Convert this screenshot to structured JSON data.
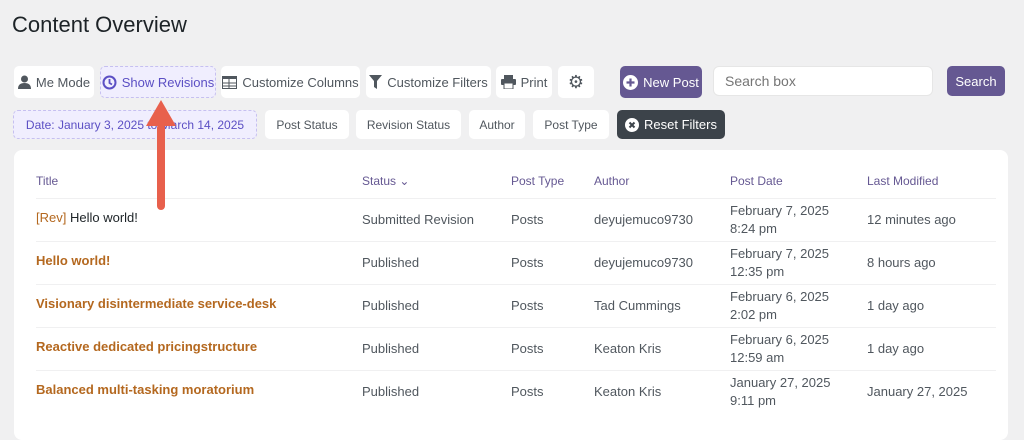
{
  "page_title": "Content Overview",
  "toolbar": {
    "me_mode": "Me Mode",
    "show_revisions": "Show Revisions",
    "customize_columns": "Customize Columns",
    "customize_filters": "Customize Filters",
    "print": "Print",
    "new_post": "New Post",
    "search_placeholder": "Search box",
    "search": "Search"
  },
  "filters": {
    "date": "Date: January 3, 2025 to March 14, 2025",
    "post_status": "Post Status",
    "revision_status": "Revision Status",
    "author": "Author",
    "post_type": "Post Type",
    "reset": "Reset Filters"
  },
  "columns": [
    "Title",
    "Status",
    "Post Type",
    "Author",
    "Post Date",
    "Last Modified"
  ],
  "rows": [
    {
      "prefix": "[Rev]",
      "title": "Hello world!",
      "status": "Submitted Revision",
      "type": "Posts",
      "author": "deyujemuco9730",
      "date": "February 7, 2025",
      "time": "8:24 pm",
      "modified": "12 minutes ago"
    },
    {
      "prefix": "",
      "title": "Hello world!",
      "status": "Published",
      "type": "Posts",
      "author": "deyujemuco9730",
      "date": "February 7, 2025",
      "time": "12:35 pm",
      "modified": "8 hours ago"
    },
    {
      "prefix": "",
      "title": "Visionary disintermediate service-desk",
      "status": "Published",
      "type": "Posts",
      "author": "Tad Cummings",
      "date": "February 6, 2025",
      "time": "2:02 pm",
      "modified": "1 day ago"
    },
    {
      "prefix": "",
      "title": "Reactive dedicated pricingstructure",
      "status": "Published",
      "type": "Posts",
      "author": "Keaton Kris",
      "date": "February 6, 2025",
      "time": "12:59 am",
      "modified": "1 day ago"
    },
    {
      "prefix": "",
      "title": "Balanced multi-tasking moratorium",
      "status": "Published",
      "type": "Posts",
      "author": "Keaton Kris",
      "date": "January 27, 2025",
      "time": "9:11 pm",
      "modified": "January 27, 2025"
    }
  ],
  "colors": {
    "accent": "#655892",
    "title_link": "#b4681f",
    "arrow": "#e8604c"
  }
}
